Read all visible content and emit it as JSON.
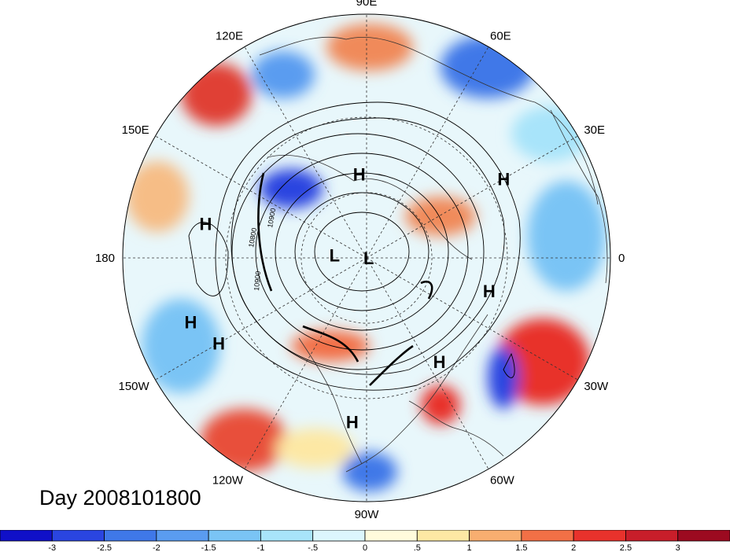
{
  "title": "Day 2008101800",
  "longitude_labels": [
    {
      "text": "90E",
      "lon": 90
    },
    {
      "text": "60E",
      "lon": 60
    },
    {
      "text": "30E",
      "lon": 30
    },
    {
      "text": "0",
      "lon": 0
    },
    {
      "text": "30W",
      "lon": -30
    },
    {
      "text": "60W",
      "lon": -60
    },
    {
      "text": "90W",
      "lon": -90
    },
    {
      "text": "120W",
      "lon": -120
    },
    {
      "text": "150W",
      "lon": -150
    },
    {
      "text": "180",
      "lon": 180
    },
    {
      "text": "150E",
      "lon": 150
    },
    {
      "text": "120E",
      "lon": 120
    }
  ],
  "pressure_centers": [
    {
      "type": "H",
      "lat": 52,
      "lon": 95
    },
    {
      "type": "H",
      "lat": 24,
      "lon": 30
    },
    {
      "type": "H",
      "lat": 22,
      "lon": 168
    },
    {
      "type": "H",
      "lat": 15,
      "lon": -160
    },
    {
      "type": "H",
      "lat": 20,
      "lon": -150
    },
    {
      "type": "H",
      "lat": 35,
      "lon": -15
    },
    {
      "type": "H",
      "lat": 35,
      "lon": -55
    },
    {
      "type": "H",
      "lat": 22,
      "lon": -95
    },
    {
      "type": "L",
      "lat": 75,
      "lon": 175
    },
    {
      "type": "L",
      "lat": 89,
      "lon": 0
    }
  ],
  "contour_labels": [
    "10800",
    "10900",
    "10900"
  ],
  "colorbar": {
    "ticks": [
      "-3",
      "-2.5",
      "-2",
      "-1.5",
      "-1",
      "-.5",
      "0",
      ".5",
      "1",
      "1.5",
      "2",
      "2.5",
      "3"
    ],
    "colors": [
      "#1010c8",
      "#2a45e0",
      "#3f78e8",
      "#5a9cf0",
      "#7ac4f5",
      "#a8e4fa",
      "#dcf6fd",
      "#fffbdc",
      "#fde8a4",
      "#f8ae70",
      "#f27046",
      "#e8322c",
      "#c81e2a",
      "#9c0a20"
    ]
  }
}
